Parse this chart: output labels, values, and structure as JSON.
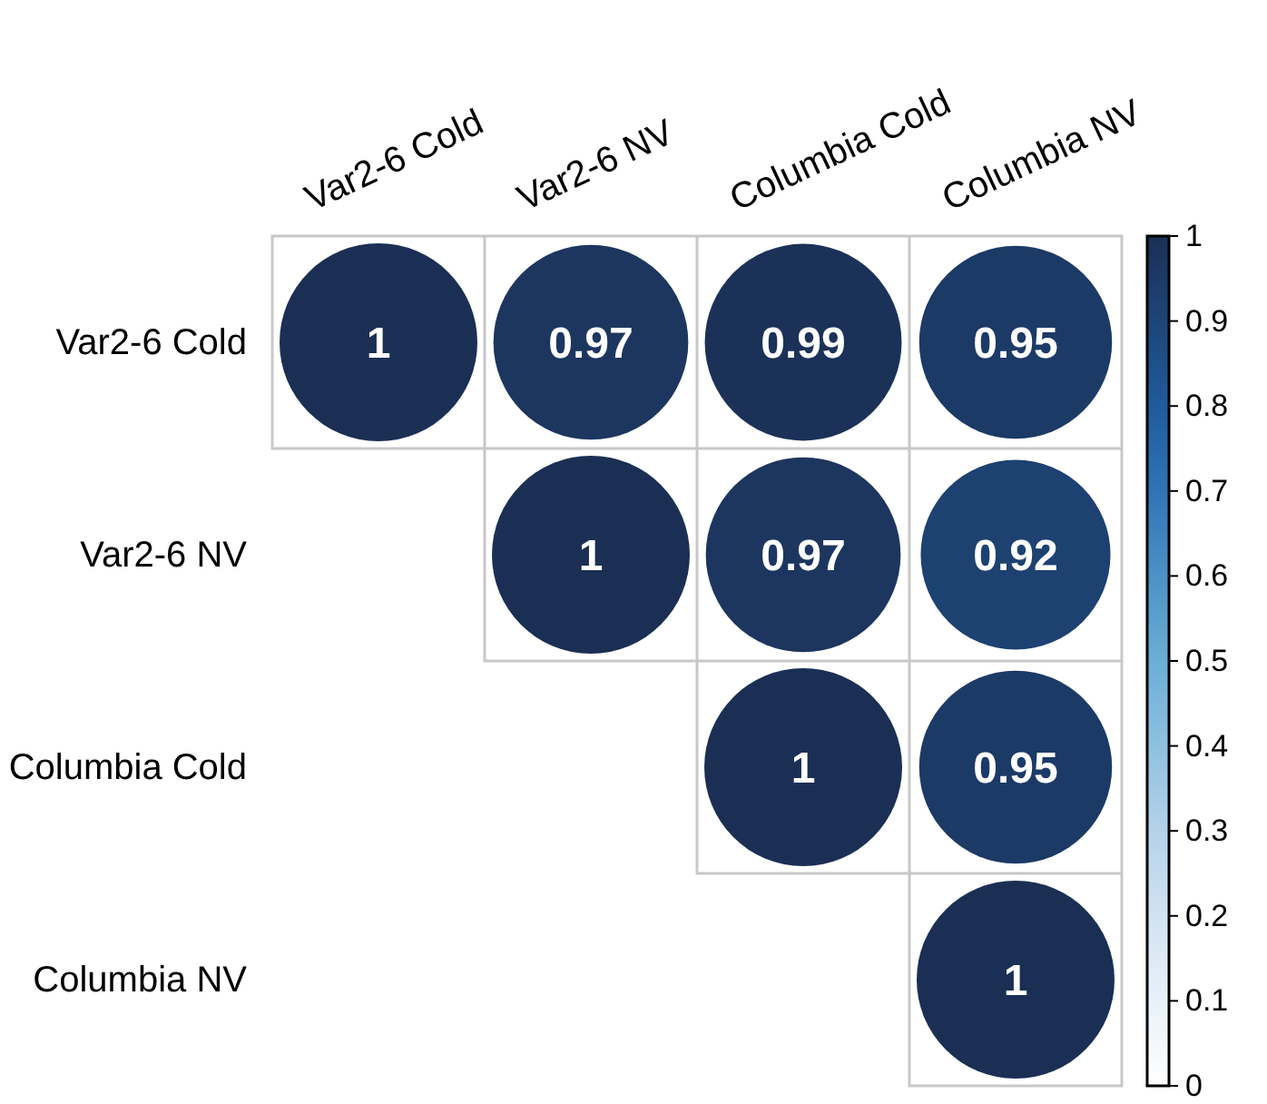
{
  "chart_data": {
    "type": "heatmap",
    "categories": [
      "Var2-6 Cold",
      "Var2-6 NV",
      "Columbia Cold",
      "Columbia NV"
    ],
    "y_categories": [
      "Var2-6 Cold",
      "Var2-6 NV",
      "Columbia Cold",
      "Columbia NV"
    ],
    "cells": [
      [
        1,
        0.97,
        0.99,
        0.95
      ],
      [
        null,
        1,
        0.97,
        0.92
      ],
      [
        null,
        null,
        1,
        0.95
      ],
      [
        null,
        null,
        null,
        1
      ]
    ],
    "data_labels": true,
    "clim": [
      0,
      1
    ],
    "cticks": [
      0,
      0.1,
      0.2,
      0.3,
      0.4,
      0.5,
      0.6,
      0.7,
      0.8,
      0.9,
      1
    ]
  }
}
